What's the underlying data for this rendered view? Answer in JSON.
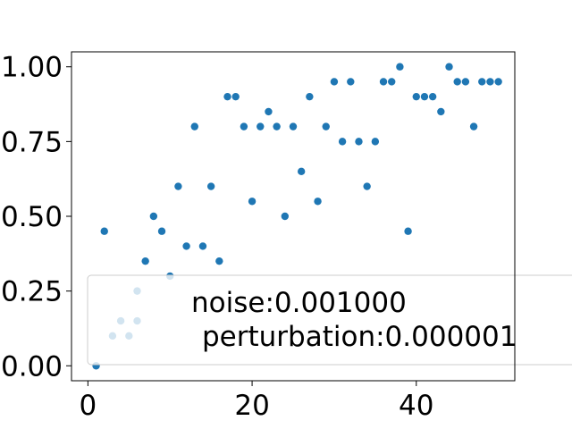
{
  "chart_data": {
    "type": "scatter",
    "title": "",
    "xlabel": "",
    "ylabel": "",
    "xlim": [
      -2,
      52
    ],
    "ylim": [
      -0.05,
      1.05
    ],
    "x_ticks": [
      0,
      20,
      40
    ],
    "x_tick_labels": [
      "0",
      "20",
      "40"
    ],
    "y_ticks": [
      0.0,
      0.25,
      0.5,
      0.75,
      1.0
    ],
    "y_tick_labels": [
      "0.00",
      "0.25",
      "0.50",
      "0.75",
      "1.00"
    ],
    "grid": false,
    "legend_position": "lower-right",
    "legend_lines": [
      "noise:0.001000",
      "perturbation:0.000001"
    ],
    "series": [
      {
        "color": "#1f77b4",
        "x": [
          1,
          2,
          6,
          7,
          8,
          9,
          10,
          11,
          12,
          13,
          14,
          15,
          16,
          17,
          18,
          19,
          20,
          21,
          22,
          23,
          24,
          25,
          26,
          27,
          28,
          29,
          30,
          31,
          32,
          33,
          34,
          35,
          36,
          37,
          38,
          39,
          40,
          41,
          42,
          43,
          44,
          45,
          46,
          47,
          48,
          49,
          50
        ],
        "y": [
          0.0,
          0.45,
          0.15,
          0.35,
          0.5,
          0.45,
          0.3,
          0.6,
          0.4,
          0.8,
          0.4,
          0.6,
          0.35,
          0.9,
          0.9,
          0.8,
          0.55,
          0.8,
          0.85,
          0.8,
          0.5,
          0.8,
          0.65,
          0.9,
          0.55,
          0.8,
          0.95,
          0.75,
          0.95,
          0.75,
          0.6,
          0.75,
          0.95,
          0.95,
          1.0,
          0.45,
          0.9,
          0.9,
          0.9,
          0.85,
          1.0,
          0.95,
          0.95,
          0.8,
          0.95,
          0.95,
          0.95
        ]
      },
      {
        "color": "#1f77b4",
        "x": [
          3,
          4,
          5,
          6
        ],
        "y": [
          0.1,
          0.15,
          0.1,
          0.25
        ]
      }
    ]
  }
}
